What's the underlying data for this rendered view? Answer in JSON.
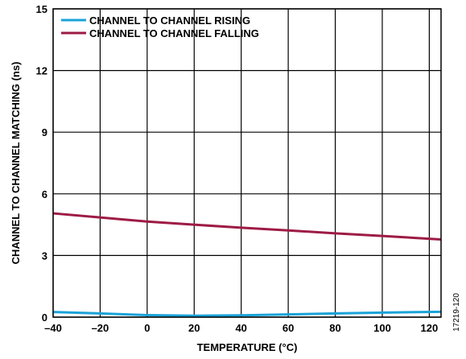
{
  "chart_data": {
    "type": "line",
    "xlabel": "TEMPERATURE (°C)",
    "ylabel": "CHANNEL TO CHANNEL MATCHING (ns)",
    "xlim": [
      -40,
      125
    ],
    "ylim": [
      0,
      15
    ],
    "x_ticks": [
      "–40",
      "–20",
      "0",
      "20",
      "40",
      "60",
      "80",
      "100",
      "120"
    ],
    "x_tick_values": [
      -40,
      -20,
      0,
      20,
      40,
      60,
      80,
      100,
      120
    ],
    "y_ticks": [
      "0",
      "3",
      "6",
      "9",
      "12",
      "15"
    ],
    "y_tick_values": [
      0,
      3,
      6,
      9,
      12,
      15
    ],
    "grid": true,
    "legend_position": "top-left",
    "series": [
      {
        "name": "CHANNEL TO CHANNEL RISING",
        "color": "#1aa3d8",
        "x": [
          -40,
          -20,
          0,
          20,
          40,
          60,
          80,
          100,
          125
        ],
        "y": [
          0.25,
          0.18,
          0.1,
          0.07,
          0.09,
          0.13,
          0.18,
          0.22,
          0.26
        ]
      },
      {
        "name": "CHANNEL TO CHANNEL FALLING",
        "color": "#9e1b45",
        "x": [
          -40,
          -20,
          0,
          20,
          40,
          60,
          80,
          100,
          125
        ],
        "y": [
          5.05,
          4.85,
          4.65,
          4.5,
          4.35,
          4.22,
          4.08,
          3.95,
          3.78
        ]
      }
    ]
  },
  "figure_id": "17219-120"
}
